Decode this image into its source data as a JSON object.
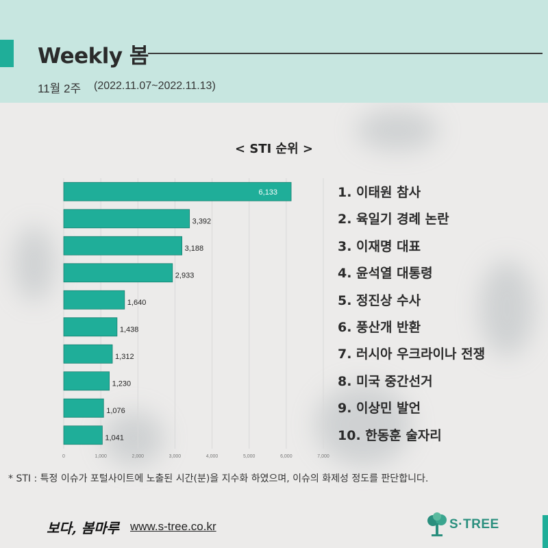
{
  "header": {
    "title": "Weekly 봄",
    "week_label": "11월 2주",
    "week_range": "(2022.11.07~2022.11.13)"
  },
  "colors": {
    "accent": "#1fae99",
    "header_bg": "#c7e6e0",
    "bar": "#1fae99"
  },
  "chart_data": {
    "type": "bar",
    "orientation": "horizontal",
    "title": "< STI 순위 >",
    "categories": [
      "1. 이태원 참사",
      "2. 육일기 경례 논란",
      "3. 이재명 대표",
      "4. 윤석열 대통령",
      "5. 정진상 수사",
      "6. 풍산개 반환",
      "7. 러시아 우크라이나 전쟁",
      "8. 미국 중간선거",
      "9. 이상민 발언",
      "10. 한동훈 술자리"
    ],
    "values": [
      6133,
      3392,
      3188,
      2933,
      1640,
      1438,
      1312,
      1230,
      1076,
      1041
    ],
    "value_labels": [
      "6,133",
      "3,392",
      "3,188",
      "2,933",
      "1,640",
      "1,438",
      "1,312",
      "1,230",
      "1,076",
      "1,041"
    ],
    "xlim": [
      0,
      7000
    ],
    "x_ticks": [
      "0",
      "1,000",
      "2,000",
      "3,000",
      "4,000",
      "5,000",
      "6,000",
      "7,000"
    ],
    "grid": true
  },
  "footnote": "* STI : 특정 이슈가 포털사이트에 노출된 시간(분)을 지수화 하였으며, 이슈의 화제성 정도를 판단합니다.",
  "footer": {
    "slogan": "보다, 봄마루",
    "url": "www.s-tree.co.kr",
    "logo_text": "S·TREE",
    "logo_icon": "tree-icon"
  }
}
